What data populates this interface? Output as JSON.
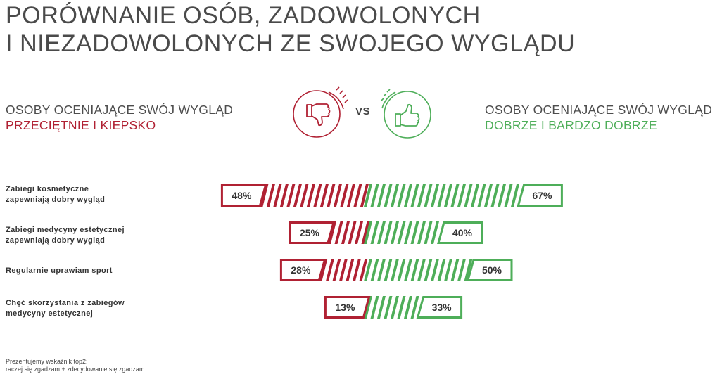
{
  "title": {
    "line1": "PORÓWNANIE OSÓB, ZADOWOLONYCH",
    "line2": "I NIEZADOWOLONYCH ZE SWOJEGO WYGLĄDU"
  },
  "groups": {
    "left": {
      "line1": "OSOBY OCENIAJĄCE SWÓJ WYGLĄD",
      "line2": "PRZECIĘTNIE I KIEPSKO"
    },
    "vs": "VS",
    "right": {
      "line1": "OSOBY OCENIAJĄCE SWÓJ WYGLĄD",
      "line2": "DOBRZE I BARDZO DOBRZE"
    }
  },
  "icons": {
    "left": "thumbs-down-icon",
    "right": "thumbs-up-icon"
  },
  "colors": {
    "red": "#b02133",
    "green": "#4eae59",
    "text": "#444444"
  },
  "chart_data": {
    "type": "bar",
    "orientation": "diverging-horizontal",
    "categories": [
      "Zabiegi kosmetyczne zapewniają dobry wygląd",
      "Zabiegi medycyny estetycznej zapewniają dobry wygląd",
      "Regularnie uprawiam sport",
      "Chęć skorzystania z zabiegów medycyny estetycznej"
    ],
    "category_lines": [
      [
        "Zabiegi kosmetyczne",
        "zapewniają dobry wygląd"
      ],
      [
        "Zabiegi medycyny estetycznej",
        "zapewniają dobry wygląd"
      ],
      [
        "Regularnie uprawiam sport"
      ],
      [
        "Chęć skorzystania z zabiegów",
        "medycyny estetycznej"
      ]
    ],
    "series": [
      {
        "values": [
          48,
          25,
          28,
          13
        ],
        "labels": [
          "48%",
          "25%",
          "28%",
          "13%"
        ],
        "color": "#b02133"
      },
      {
        "values": [
          67,
          40,
          50,
          33
        ],
        "labels": [
          "67%",
          "40%",
          "50%",
          "33%"
        ],
        "color": "#4eae59"
      }
    ],
    "unit": "%"
  },
  "footnote": {
    "line1": "Prezentujemy wskaźnik top2:",
    "line2": "raczej się zgadzam + zdecydowanie się zgadzam"
  }
}
